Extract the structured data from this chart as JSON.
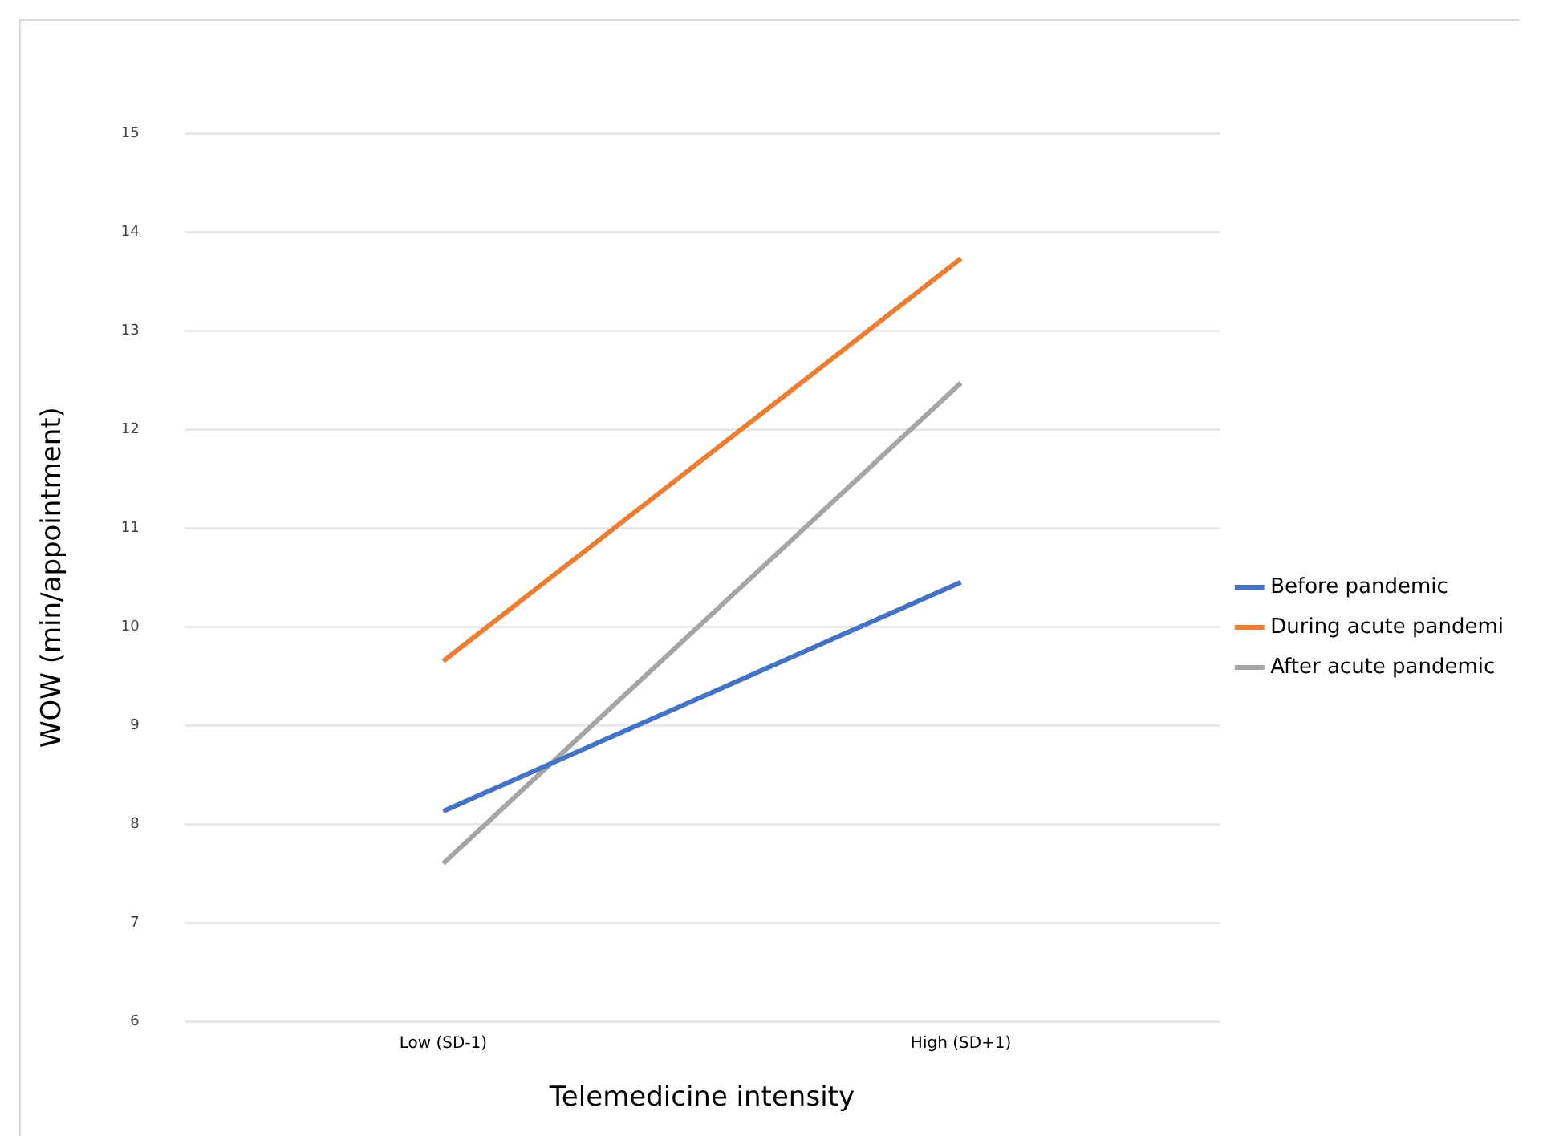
{
  "chart_data": {
    "type": "line",
    "xlabel": "Telemedicine intensity",
    "ylabel": "WOW (min/appointment)",
    "categories": [
      "Low (SD-1)",
      "High (SD+1)"
    ],
    "series": [
      {
        "name": "Before pandemic",
        "color": "#4472c4",
        "values": [
          8.13,
          10.45
        ]
      },
      {
        "name": "During acute pandemi",
        "color": "#ed7d31",
        "values": [
          9.65,
          13.73
        ]
      },
      {
        "name": "After acute pandemic",
        "color": "#a5a5a5",
        "values": [
          7.6,
          12.47
        ]
      }
    ],
    "ylim": [
      6,
      15
    ],
    "yticks": [
      6,
      7,
      8,
      9,
      10,
      11,
      12,
      13,
      14,
      15
    ],
    "grid": "y",
    "legend": "right",
    "marker": "none"
  }
}
